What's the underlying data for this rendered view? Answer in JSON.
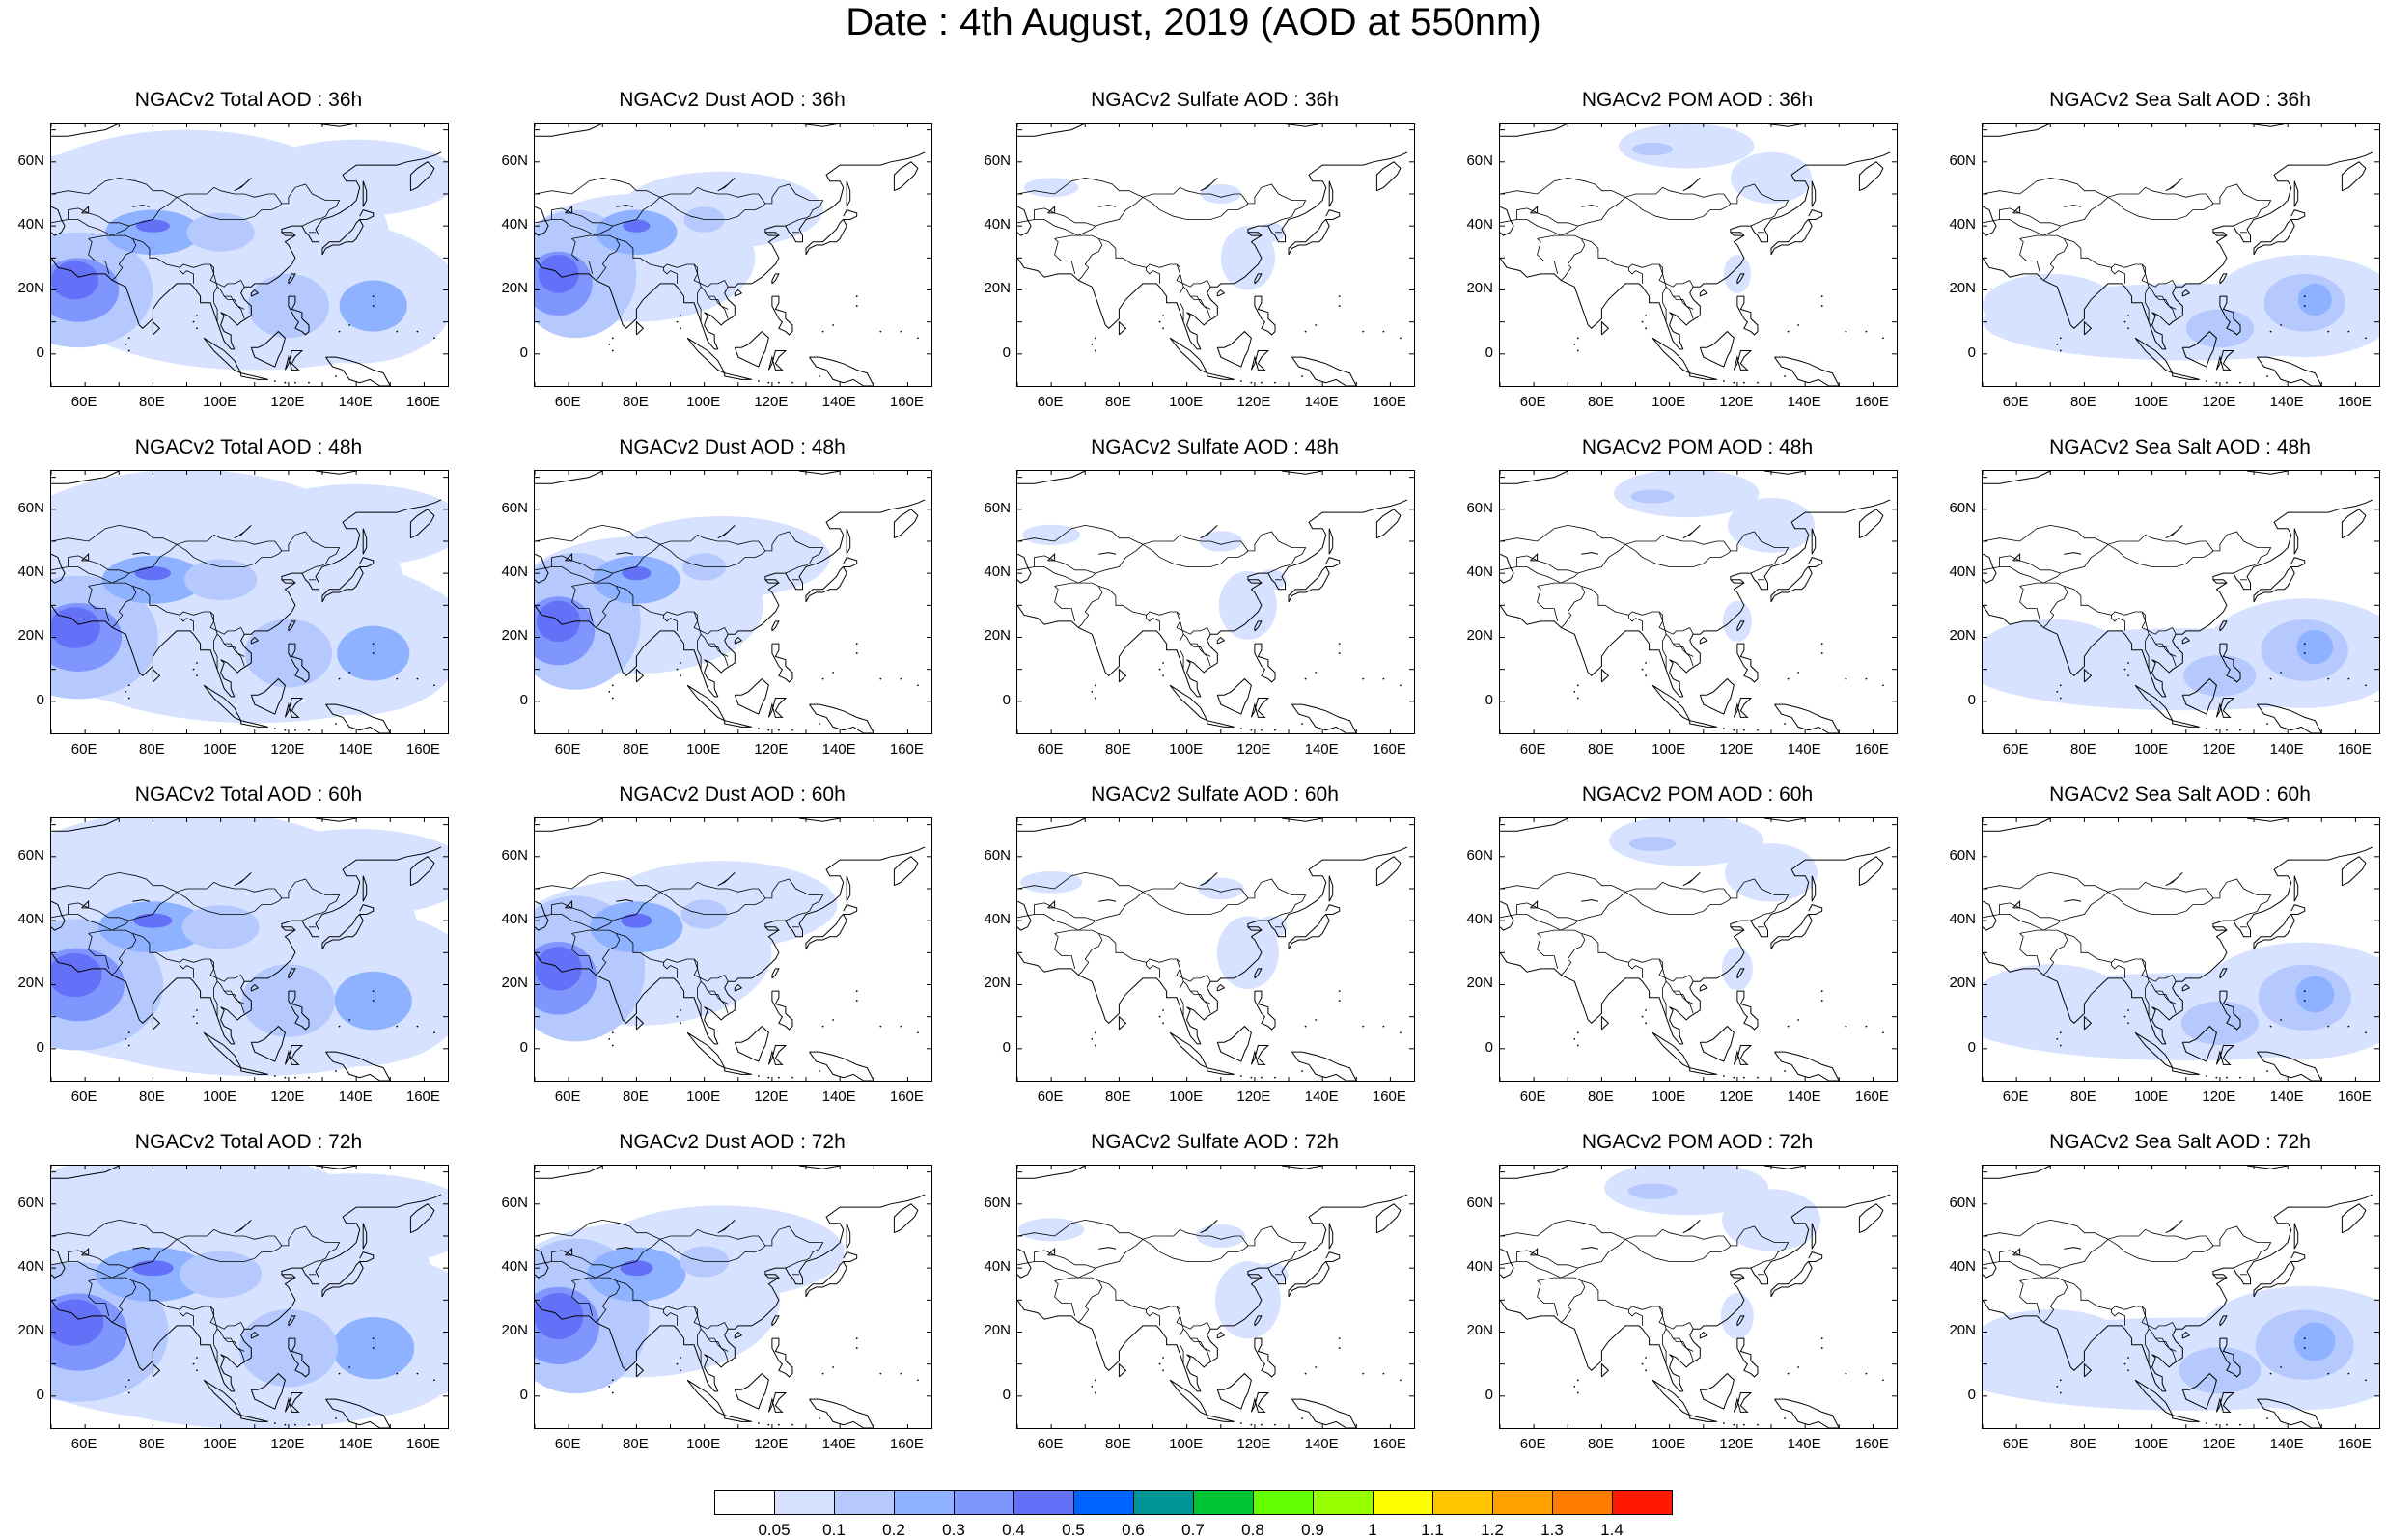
{
  "title": "Date : 4th August, 2019 (AOD at 550nm)",
  "panels": [
    [
      "NGACv2 Total AOD : 36h",
      "NGACv2 Dust AOD : 36h",
      "NGACv2 Sulfate AOD : 36h",
      "NGACv2 POM AOD : 36h",
      "NGACv2 Sea Salt AOD : 36h"
    ],
    [
      "NGACv2 Total AOD : 48h",
      "NGACv2 Dust AOD : 48h",
      "NGACv2 Sulfate AOD : 48h",
      "NGACv2 POM AOD : 48h",
      "NGACv2 Sea Salt AOD : 48h"
    ],
    [
      "NGACv2 Total AOD : 60h",
      "NGACv2 Dust AOD : 60h",
      "NGACv2 Sulfate AOD : 60h",
      "NGACv2 POM AOD : 60h",
      "NGACv2 Sea Salt AOD : 60h"
    ],
    [
      "NGACv2 Total AOD : 72h",
      "NGACv2 Dust AOD : 72h",
      "NGACv2 Sulfate AOD : 72h",
      "NGACv2 POM AOD : 72h",
      "NGACv2 Sea Salt  AOD : 72h"
    ]
  ],
  "lat_labels": [
    "60N",
    "40N",
    "20N",
    "0"
  ],
  "lon_labels": [
    "60E",
    "80E",
    "100E",
    "120E",
    "140E",
    "160E"
  ],
  "colorbar": {
    "labels": [
      "0.05",
      "0.1",
      "0.2",
      "0.3",
      "0.4",
      "0.5",
      "0.6",
      "0.7",
      "0.8",
      "0.9",
      "1",
      "1.1",
      "1.2",
      "1.3",
      "1.4"
    ],
    "colors": [
      "#ffffff",
      "#d6e2ff",
      "#b5c9ff",
      "#8eb2ff",
      "#7f96ff",
      "#6370f8",
      "#0063ff",
      "#009696",
      "#00c633",
      "#63ff00",
      "#96ff00",
      "#ffff00",
      "#ffc600",
      "#ffa000",
      "#ff7c00",
      "#ff1900"
    ]
  }
}
